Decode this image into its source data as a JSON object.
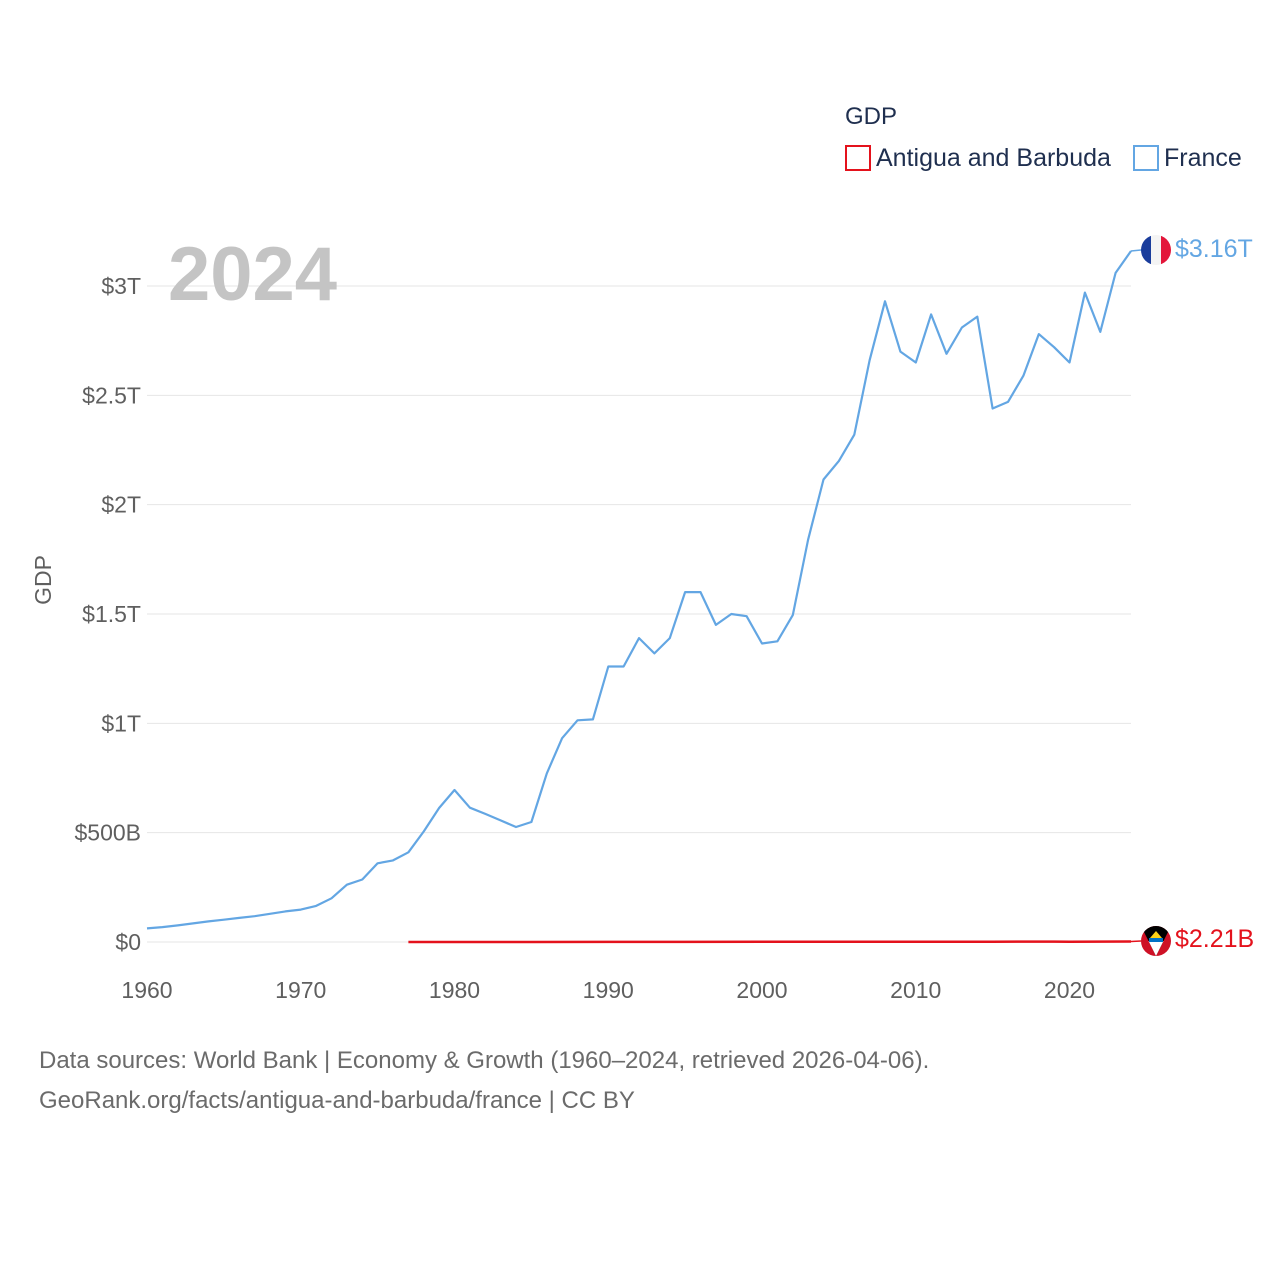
{
  "chart_data": {
    "type": "line",
    "title": "GDP",
    "ylabel": "GDP",
    "xlabel": "",
    "year_label": "2024",
    "xlim": [
      1960,
      2024
    ],
    "ylim": [
      0,
      3.3
    ],
    "x_ticks": [
      {
        "value": 1960,
        "label": "1960"
      },
      {
        "value": 1970,
        "label": "1970"
      },
      {
        "value": 1980,
        "label": "1980"
      },
      {
        "value": 1990,
        "label": "1990"
      },
      {
        "value": 2000,
        "label": "2000"
      },
      {
        "value": 2010,
        "label": "2010"
      },
      {
        "value": 2020,
        "label": "2020"
      }
    ],
    "y_ticks": [
      {
        "value": 0,
        "label": "$0"
      },
      {
        "value": 0.5,
        "label": "$500B"
      },
      {
        "value": 1,
        "label": "$1T"
      },
      {
        "value": 1.5,
        "label": "$1.5T"
      },
      {
        "value": 2,
        "label": "$2T"
      },
      {
        "value": 2.5,
        "label": "$2.5T"
      },
      {
        "value": 3,
        "label": "$3T"
      }
    ],
    "legend_title": "GDP",
    "series": [
      {
        "name": "Antigua and Barbuda",
        "color": "#e4121c",
        "end_label": "$2.21B",
        "flag": "antigua-and-barbuda-flag-icon",
        "x": [
          1977,
          1980,
          1985,
          1990,
          1995,
          2000,
          2005,
          2008,
          2010,
          2015,
          2019,
          2020,
          2022,
          2024
        ],
        "values": [
          0.0001,
          0.0001,
          0.0002,
          0.0004,
          0.0006,
          0.0008,
          0.0011,
          0.0014,
          0.0012,
          0.0014,
          0.0017,
          0.0014,
          0.0017,
          0.0022
        ]
      },
      {
        "name": "France",
        "color": "#63a6e3",
        "end_label": "$3.16T",
        "flag": "france-flag-icon",
        "x": [
          1960,
          1961,
          1962,
          1963,
          1964,
          1965,
          1966,
          1967,
          1968,
          1969,
          1970,
          1971,
          1972,
          1973,
          1974,
          1975,
          1976,
          1977,
          1978,
          1979,
          1980,
          1981,
          1982,
          1983,
          1984,
          1985,
          1986,
          1987,
          1988,
          1989,
          1990,
          1991,
          1992,
          1993,
          1994,
          1995,
          1996,
          1997,
          1998,
          1999,
          2000,
          2001,
          2002,
          2003,
          2004,
          2005,
          2006,
          2007,
          2008,
          2009,
          2010,
          2011,
          2012,
          2013,
          2014,
          2015,
          2016,
          2017,
          2018,
          2019,
          2020,
          2021,
          2022,
          2023,
          2024
        ],
        "values": [
          0.062,
          0.068,
          0.076,
          0.085,
          0.094,
          0.102,
          0.11,
          0.118,
          0.129,
          0.14,
          0.148,
          0.165,
          0.2,
          0.262,
          0.286,
          0.36,
          0.373,
          0.41,
          0.506,
          0.613,
          0.695,
          0.614,
          0.586,
          0.556,
          0.526,
          0.549,
          0.771,
          0.932,
          1.014,
          1.018,
          1.26,
          1.26,
          1.39,
          1.32,
          1.39,
          1.6,
          1.6,
          1.45,
          1.5,
          1.49,
          1.365,
          1.375,
          1.495,
          1.84,
          2.115,
          2.2,
          2.32,
          2.66,
          2.93,
          2.7,
          2.65,
          2.87,
          2.69,
          2.81,
          2.86,
          2.44,
          2.47,
          2.59,
          2.78,
          2.72,
          2.65,
          2.97,
          2.79,
          3.06,
          3.16
        ]
      }
    ]
  },
  "source": {
    "line1": "Data sources: World Bank | Economy & Growth (1960–2024, retrieved 2026-04-06).",
    "line2": "GeoRank.org/facts/antigua-and-barbuda/france | CC BY"
  }
}
